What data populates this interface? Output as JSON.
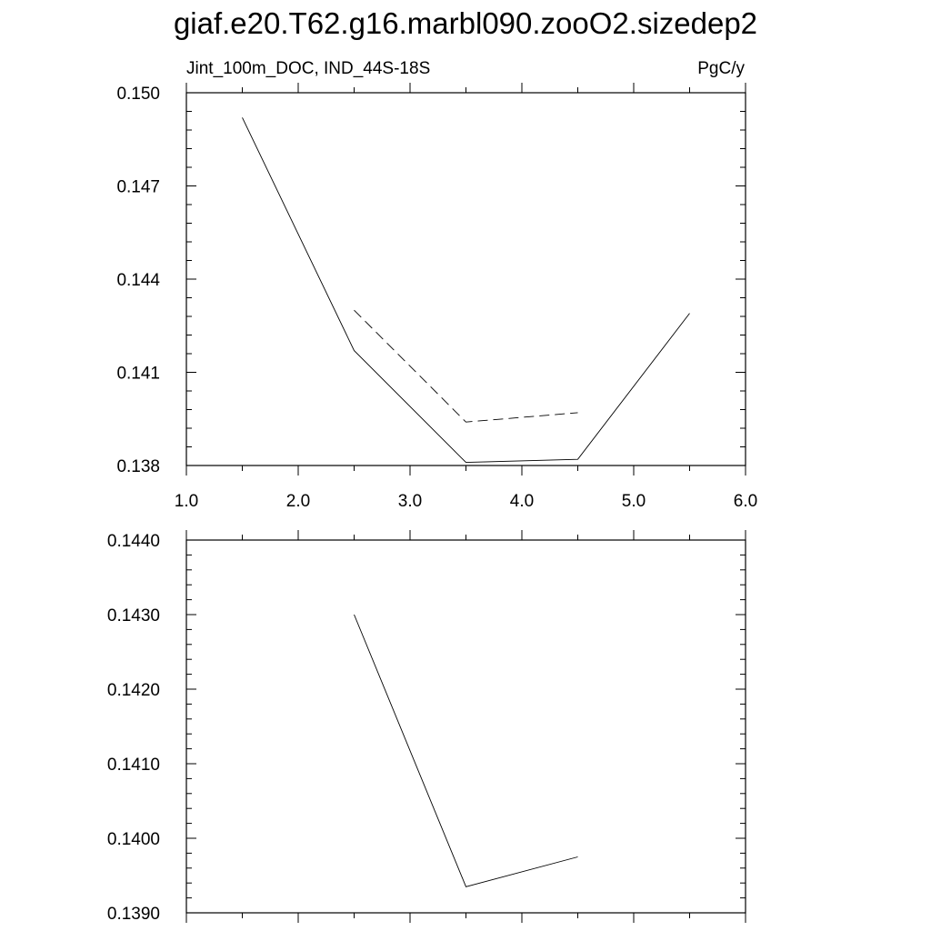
{
  "title": "giaf.e20.T62.g16.marbl090.zooO2.sizedep2",
  "chart_data": [
    {
      "type": "line",
      "left_label": "Jint_100m_DOC, IND_44S-18S",
      "right_label": "PgC/y",
      "xlim": [
        1.0,
        6.0
      ],
      "ylim": [
        0.138,
        0.15
      ],
      "x_ticks": [
        "1.0",
        "2.0",
        "3.0",
        "4.0",
        "5.0",
        "6.0"
      ],
      "y_ticks": [
        "0.138",
        "0.141",
        "0.144",
        "0.147",
        "0.150"
      ],
      "series": [
        {
          "style": "solid",
          "x": [
            1.5,
            2.5,
            3.5,
            4.5,
            5.5
          ],
          "y": [
            0.1492,
            0.1417,
            0.1381,
            0.1382,
            0.1429
          ]
        },
        {
          "style": "dashed",
          "x": [
            2.5,
            3.5,
            4.5
          ],
          "y": [
            0.143,
            0.1394,
            0.1397
          ]
        }
      ]
    },
    {
      "type": "line",
      "xlim": [
        1.0,
        6.0
      ],
      "ylim": [
        0.139,
        0.144
      ],
      "y_ticks": [
        "0.1390",
        "0.1400",
        "0.1410",
        "0.1420",
        "0.1430",
        "0.1440"
      ],
      "series": [
        {
          "style": "solid",
          "x": [
            2.5,
            3.5,
            4.5
          ],
          "y": [
            0.143,
            0.13935,
            0.13975
          ]
        }
      ]
    }
  ]
}
